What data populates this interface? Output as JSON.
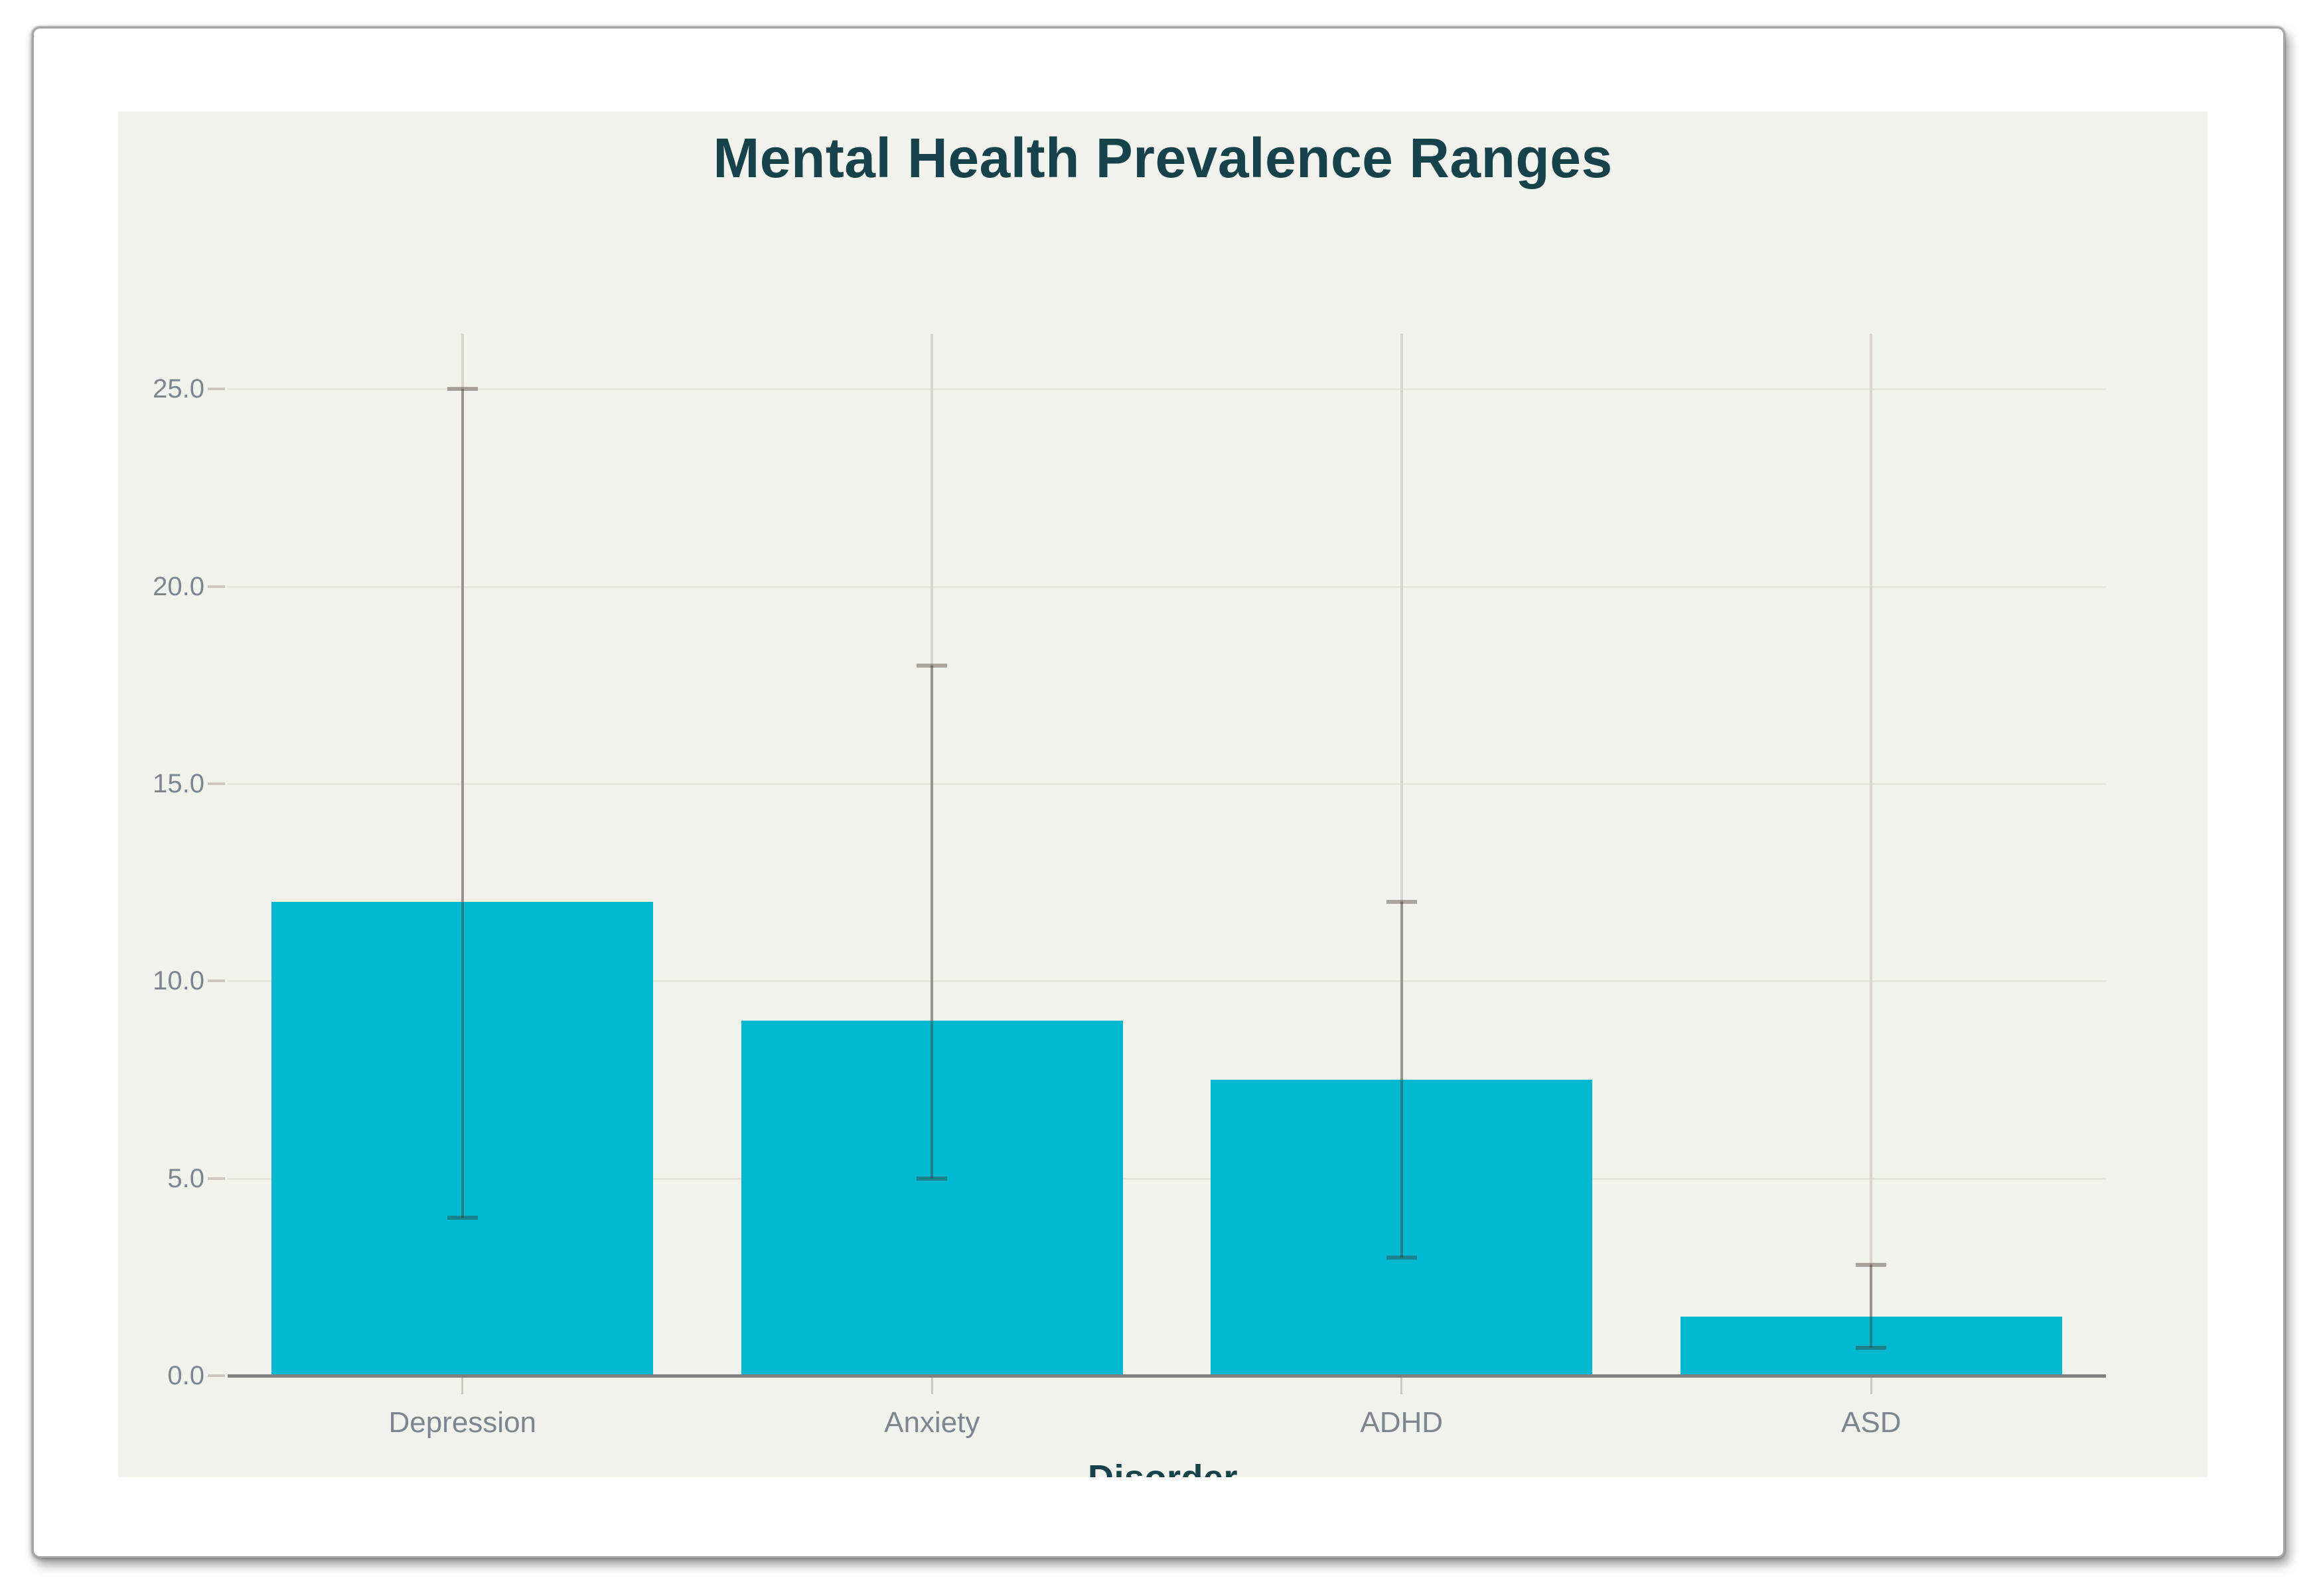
{
  "page": {
    "background": "#ffffff"
  },
  "card": {
    "border_color": "#a5a5a5"
  },
  "chart_data": {
    "type": "bar",
    "title": "Mental Health Prevalence Ranges",
    "xlabel": "Disorder",
    "ylabel": "",
    "categories": [
      "Depression",
      "Anxiety",
      "ADHD",
      "ASD"
    ],
    "values": [
      12,
      9,
      7.5,
      1.5
    ],
    "error_bars": [
      {
        "category": "Depression",
        "low": 4,
        "high": 25
      },
      {
        "category": "Anxiety",
        "low": 5,
        "high": 18
      },
      {
        "category": "ADHD",
        "low": 3,
        "high": 12
      },
      {
        "category": "ASD",
        "low": 0.7,
        "high": 2.8
      }
    ],
    "yticks": [
      {
        "label": "0.0",
        "value": 0
      },
      {
        "label": "5.0",
        "value": 5
      },
      {
        "label": "10.0",
        "value": 10
      },
      {
        "label": "15.0",
        "value": 15
      },
      {
        "label": "20.0",
        "value": 20
      },
      {
        "label": "25.0",
        "value": 25
      }
    ],
    "ylim": [
      0,
      26.4
    ],
    "grid": true,
    "legend": false,
    "colors": {
      "bar": "#00b9d1",
      "title_text": "#16424c",
      "tick_label": "#7b8690",
      "axis_line": "#7f7f7f",
      "h_gridline": "#e5e4dd",
      "v_gridline": "#d9d5ce",
      "tick_mark": "#ccc8c1",
      "error_bar": "rgba(63,47,41,0.4)",
      "plot_background": "#f2f2ec"
    }
  }
}
